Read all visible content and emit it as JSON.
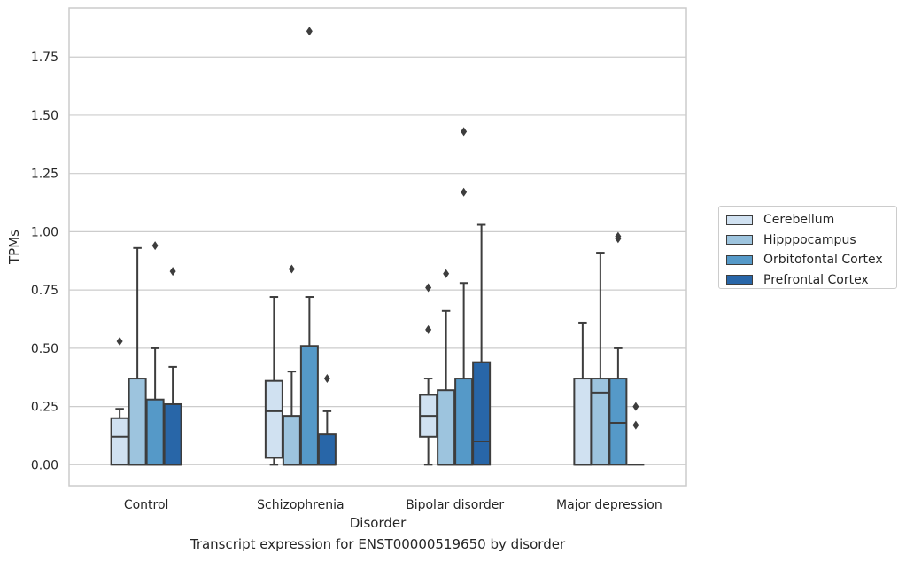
{
  "chart_data": {
    "type": "box",
    "xlabel": "Disorder",
    "ylabel": "TPMs",
    "caption": "Transcript expression for ENST00000519650 by disorder",
    "categories": [
      "Control",
      "Schizophrenia",
      "Bipolar disorder",
      "Major depression"
    ],
    "y_ticks": [
      "0.00",
      "0.25",
      "0.50",
      "0.75",
      "1.00",
      "1.25",
      "1.50",
      "1.75"
    ],
    "ylim": [
      -0.09,
      1.96
    ],
    "grid": true,
    "legend_position": "right",
    "series": [
      {
        "name": "Cerebellum",
        "color": "#d0e1f1",
        "boxes": [
          {
            "min": 0.0,
            "q1": 0.0,
            "median": 0.12,
            "q3": 0.2,
            "max": 0.24,
            "outliers": [
              0.53
            ]
          },
          {
            "min": 0.0,
            "q1": 0.03,
            "median": 0.23,
            "q3": 0.36,
            "max": 0.72,
            "outliers": []
          },
          {
            "min": 0.0,
            "q1": 0.12,
            "median": 0.21,
            "q3": 0.3,
            "max": 0.37,
            "outliers": [
              0.58,
              0.76
            ]
          },
          {
            "min": 0.0,
            "q1": 0.0,
            "median": 0.0,
            "q3": 0.37,
            "max": 0.61,
            "outliers": []
          }
        ]
      },
      {
        "name": "Hipppocampus",
        "color": "#9dc4de",
        "boxes": [
          {
            "min": 0.0,
            "q1": 0.0,
            "median": 0.0,
            "q3": 0.37,
            "max": 0.93,
            "outliers": []
          },
          {
            "min": 0.0,
            "q1": 0.0,
            "median": 0.0,
            "q3": 0.21,
            "max": 0.4,
            "outliers": [
              0.84
            ]
          },
          {
            "min": 0.0,
            "q1": 0.0,
            "median": 0.0,
            "q3": 0.32,
            "max": 0.66,
            "outliers": [
              0.82
            ]
          },
          {
            "min": 0.0,
            "q1": 0.0,
            "median": 0.31,
            "q3": 0.37,
            "max": 0.91,
            "outliers": []
          }
        ]
      },
      {
        "name": "Orbitofontal Cortex",
        "color": "#5599c8",
        "boxes": [
          {
            "min": 0.0,
            "q1": 0.0,
            "median": 0.0,
            "q3": 0.28,
            "max": 0.5,
            "outliers": [
              0.94
            ]
          },
          {
            "min": 0.0,
            "q1": 0.0,
            "median": 0.0,
            "q3": 0.51,
            "max": 0.72,
            "outliers": [
              1.86
            ]
          },
          {
            "min": 0.0,
            "q1": 0.0,
            "median": 0.0,
            "q3": 0.37,
            "max": 0.78,
            "outliers": [
              1.17,
              1.43
            ]
          },
          {
            "min": 0.0,
            "q1": 0.0,
            "median": 0.18,
            "q3": 0.37,
            "max": 0.5,
            "outliers": [
              0.97,
              0.98
            ]
          }
        ]
      },
      {
        "name": "Prefrontal Cortex",
        "color": "#2866a8",
        "boxes": [
          {
            "min": 0.0,
            "q1": 0.0,
            "median": 0.0,
            "q3": 0.26,
            "max": 0.42,
            "outliers": [
              0.83
            ]
          },
          {
            "min": 0.0,
            "q1": 0.0,
            "median": 0.0,
            "q3": 0.13,
            "max": 0.23,
            "outliers": [
              0.37
            ]
          },
          {
            "min": 0.0,
            "q1": 0.0,
            "median": 0.1,
            "q3": 0.44,
            "max": 1.03,
            "outliers": []
          },
          {
            "min": 0.0,
            "q1": 0.0,
            "median": 0.0,
            "q3": 0.0,
            "max": 0.0,
            "outliers": [
              0.17,
              0.25
            ]
          }
        ]
      }
    ]
  }
}
